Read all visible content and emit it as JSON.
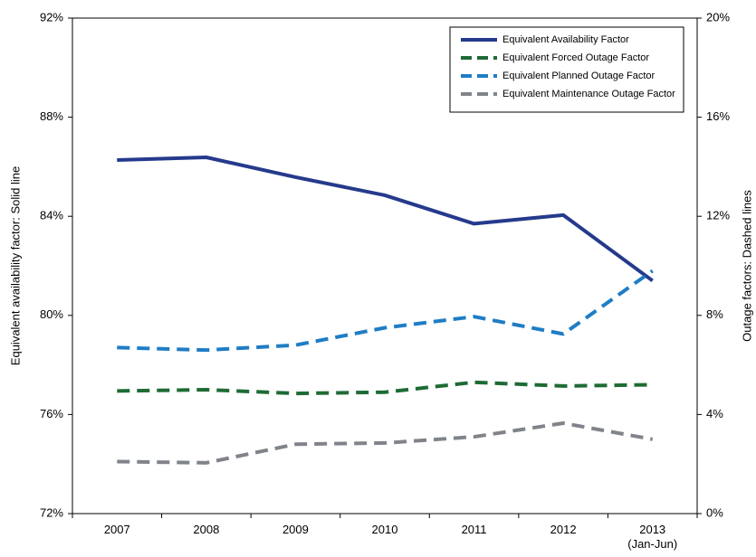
{
  "chart_data": {
    "type": "line",
    "y_label": "Equivalent availability factor: Solid line",
    "y2_label": "Outage factors: Dashed lines",
    "categories": [
      "2007",
      "2008",
      "2009",
      "2010",
      "2011",
      "2012",
      "2013\n(Jan-Jun)"
    ],
    "ylim": [
      72,
      92
    ],
    "yticks": [
      {
        "value": 72,
        "label": "72%"
      },
      {
        "value": 76,
        "label": "76%"
      },
      {
        "value": 80,
        "label": "80%"
      },
      {
        "value": 84,
        "label": "84%"
      },
      {
        "value": 88,
        "label": "88%"
      },
      {
        "value": 92,
        "label": "92%"
      }
    ],
    "y2lim": [
      0,
      20
    ],
    "y2ticks": [
      {
        "value": 0,
        "label": "0%"
      },
      {
        "value": 4,
        "label": "4%"
      },
      {
        "value": 8,
        "label": "8%"
      },
      {
        "value": 12,
        "label": "12%"
      },
      {
        "value": 16,
        "label": "16%"
      },
      {
        "value": 20,
        "label": "20%"
      }
    ],
    "legend": "upper right",
    "series": [
      {
        "name": "Equivalent Availability Factor",
        "color": "#253a8c",
        "line_style": "solid",
        "values": [
          86.27,
          86.38,
          85.58,
          84.85,
          83.7,
          84.05,
          81.4
        ]
      },
      {
        "name": "Equivalent Forced Outage Factor",
        "color": "#1e6b35",
        "line_style": "dashed",
        "axis": "y2",
        "values": [
          4.95,
          5.0,
          4.85,
          4.9,
          5.3,
          5.15,
          5.2
        ]
      },
      {
        "name": "Equivalent Planned Outage Factor",
        "color": "#1f7dc5",
        "line_style": "dashed",
        "axis": "y2",
        "values": [
          6.7,
          6.6,
          6.8,
          7.5,
          7.95,
          7.25,
          9.8
        ]
      },
      {
        "name": "Equivalent Maintenance Outage Factor",
        "color": "#80848a",
        "line_style": "dashed",
        "axis": "y2",
        "values": [
          2.1,
          2.05,
          2.8,
          2.85,
          3.1,
          3.65,
          3.0
        ]
      }
    ]
  }
}
